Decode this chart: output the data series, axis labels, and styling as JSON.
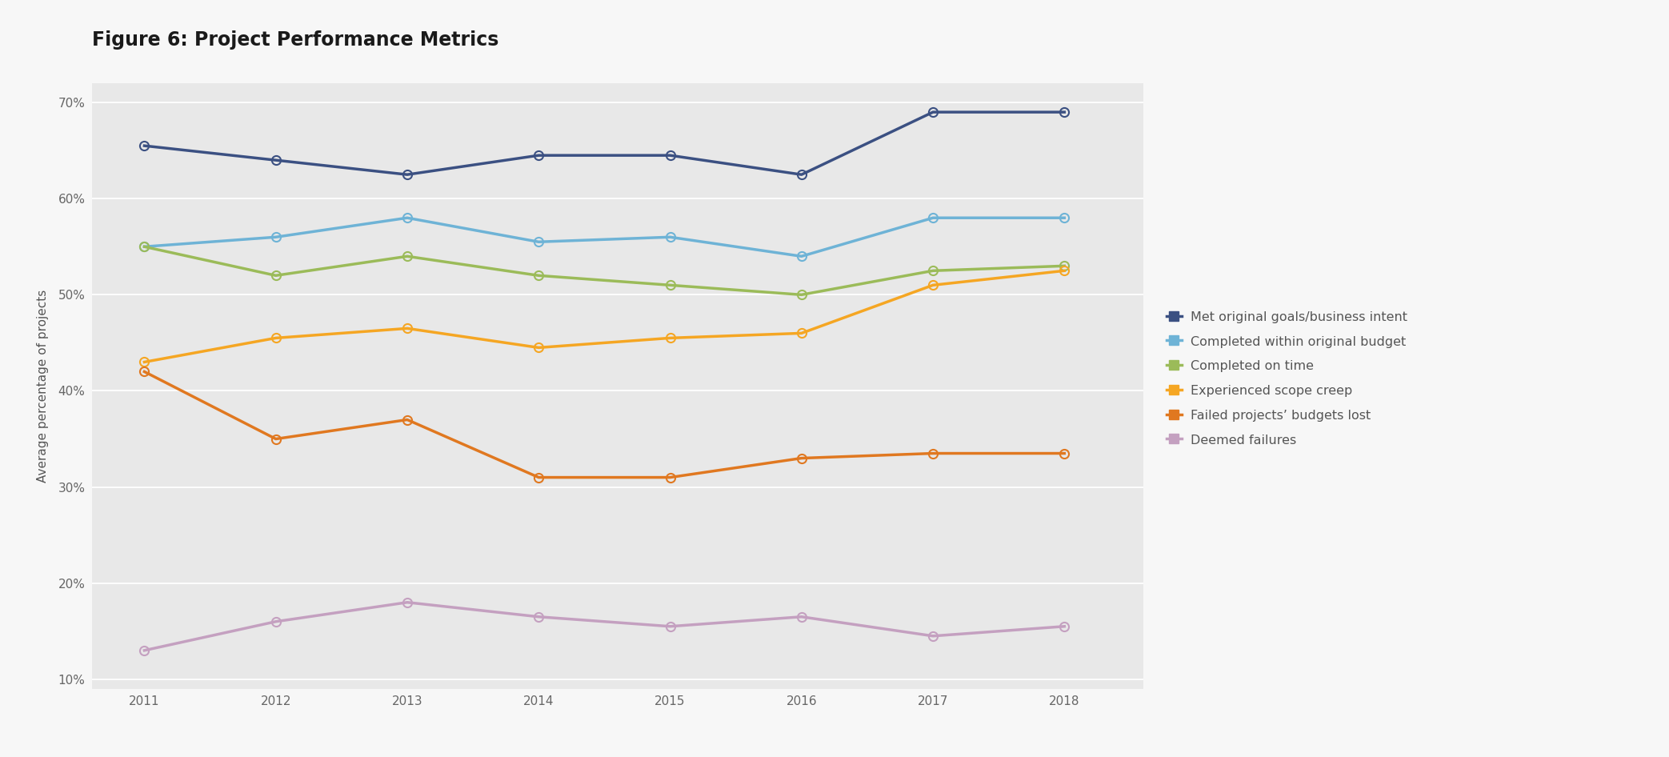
{
  "title": "Figure 6: Project Performance Metrics",
  "ylabel": "Average percentage of projects",
  "years": [
    2011,
    2012,
    2013,
    2014,
    2015,
    2016,
    2017,
    2018
  ],
  "series": [
    {
      "name": "Met original goals/business intent",
      "values": [
        65.5,
        64.0,
        62.5,
        64.5,
        64.5,
        62.5,
        69.0,
        69.0
      ],
      "color": "#3B5082",
      "line_width": 2.5,
      "marker_size": 8
    },
    {
      "name": "Completed within original budget",
      "values": [
        55.0,
        56.0,
        58.0,
        55.5,
        56.0,
        54.0,
        58.0,
        58.0
      ],
      "color": "#6EB3D6",
      "line_width": 2.5,
      "marker_size": 8
    },
    {
      "name": "Completed on time",
      "values": [
        55.0,
        52.0,
        54.0,
        52.0,
        51.0,
        50.0,
        52.5,
        53.0
      ],
      "color": "#9BBB59",
      "line_width": 2.5,
      "marker_size": 8
    },
    {
      "name": "Experienced scope creep",
      "values": [
        43.0,
        45.5,
        46.5,
        44.5,
        45.5,
        46.0,
        51.0,
        52.5
      ],
      "color": "#F5A623",
      "line_width": 2.5,
      "marker_size": 8
    },
    {
      "name": "Failed projects’ budgets lost",
      "values": [
        42.0,
        35.0,
        37.0,
        31.0,
        31.0,
        33.0,
        33.5,
        33.5
      ],
      "color": "#E07820",
      "line_width": 2.5,
      "marker_size": 8
    },
    {
      "name": "Deemed failures",
      "values": [
        13.0,
        16.0,
        18.0,
        16.5,
        15.5,
        16.5,
        14.5,
        15.5
      ],
      "color": "#C4A0C0",
      "line_width": 2.5,
      "marker_size": 8
    }
  ],
  "ylim": [
    9,
    72
  ],
  "yticks": [
    10,
    20,
    30,
    40,
    50,
    60,
    70
  ],
  "ytick_labels": [
    "10%",
    "20%",
    "30%",
    "40%",
    "50%",
    "60%",
    "70%"
  ],
  "fig_bg_color": "#F7F7F7",
  "plot_bg_color": "#E8E8E8",
  "grid_color": "#FFFFFF",
  "title_fontsize": 17,
  "axis_label_fontsize": 11,
  "tick_fontsize": 11,
  "legend_fontsize": 11.5,
  "tick_color": "#666666",
  "label_color": "#555555"
}
